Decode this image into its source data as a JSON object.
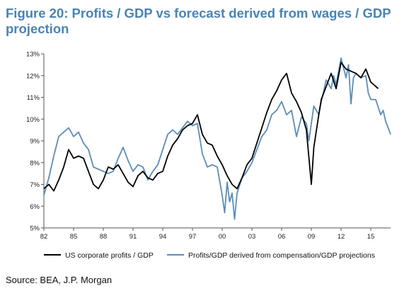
{
  "title": "Figure 20: Profits / GDP vs forecast derived from wages / GDP projection",
  "source": "Source: BEA, J.P. Morgan",
  "chart_data": {
    "type": "line",
    "x_unit": "year",
    "xlim": [
      1982,
      2017
    ],
    "ylim": [
      5,
      13
    ],
    "x_ticks": [
      1982,
      1985,
      1988,
      1991,
      1994,
      1997,
      2000,
      2003,
      2006,
      2009,
      2012,
      2015
    ],
    "x_tick_labels": [
      "82",
      "85",
      "88",
      "91",
      "94",
      "97",
      "00",
      "03",
      "06",
      "09",
      "12",
      "15"
    ],
    "y_ticks": [
      5,
      6,
      7,
      8,
      9,
      10,
      11,
      12,
      13
    ],
    "y_tick_labels": [
      "5%",
      "6%",
      "7%",
      "8%",
      "9%",
      "10%",
      "11%",
      "12%",
      "13%"
    ],
    "legend_position": "bottom",
    "grid": false,
    "series": [
      {
        "name": "US corporate profits / GDP",
        "color": "#000000",
        "points": [
          [
            1982.0,
            6.8
          ],
          [
            1982.5,
            7.0
          ],
          [
            1983.0,
            6.7
          ],
          [
            1983.5,
            7.2
          ],
          [
            1984.0,
            7.8
          ],
          [
            1984.5,
            8.6
          ],
          [
            1985.0,
            8.2
          ],
          [
            1985.5,
            8.3
          ],
          [
            1986.0,
            8.2
          ],
          [
            1986.5,
            7.6
          ],
          [
            1987.0,
            7.0
          ],
          [
            1987.5,
            6.8
          ],
          [
            1988.0,
            7.2
          ],
          [
            1988.5,
            7.8
          ],
          [
            1989.0,
            7.7
          ],
          [
            1989.5,
            7.9
          ],
          [
            1990.0,
            7.5
          ],
          [
            1990.5,
            7.1
          ],
          [
            1991.0,
            6.9
          ],
          [
            1991.5,
            7.4
          ],
          [
            1992.0,
            7.6
          ],
          [
            1992.5,
            7.3
          ],
          [
            1993.0,
            7.2
          ],
          [
            1993.5,
            7.5
          ],
          [
            1994.0,
            7.6
          ],
          [
            1994.5,
            8.3
          ],
          [
            1995.0,
            8.8
          ],
          [
            1995.5,
            9.1
          ],
          [
            1996.0,
            9.5
          ],
          [
            1996.5,
            9.7
          ],
          [
            1997.0,
            9.8
          ],
          [
            1997.5,
            10.2
          ],
          [
            1998.0,
            9.3
          ],
          [
            1998.5,
            8.9
          ],
          [
            1999.0,
            8.8
          ],
          [
            1999.5,
            8.3
          ],
          [
            2000.0,
            7.9
          ],
          [
            2000.5,
            7.4
          ],
          [
            2001.0,
            7.0
          ],
          [
            2001.5,
            6.8
          ],
          [
            2002.0,
            7.3
          ],
          [
            2002.5,
            7.9
          ],
          [
            2003.0,
            8.2
          ],
          [
            2003.5,
            8.9
          ],
          [
            2004.0,
            9.6
          ],
          [
            2004.5,
            10.3
          ],
          [
            2005.0,
            10.9
          ],
          [
            2005.5,
            11.3
          ],
          [
            2006.0,
            11.8
          ],
          [
            2006.5,
            12.1
          ],
          [
            2007.0,
            11.2
          ],
          [
            2007.5,
            10.8
          ],
          [
            2008.0,
            10.3
          ],
          [
            2008.5,
            9.5
          ],
          [
            2009.0,
            7.0
          ],
          [
            2009.25,
            8.7
          ],
          [
            2009.75,
            10.2
          ],
          [
            2010.0,
            10.9
          ],
          [
            2010.5,
            11.5
          ],
          [
            2011.0,
            12.1
          ],
          [
            2011.5,
            11.4
          ],
          [
            2012.0,
            12.6
          ],
          [
            2012.5,
            12.3
          ],
          [
            2013.0,
            12.2
          ],
          [
            2013.5,
            12.1
          ],
          [
            2014.0,
            11.9
          ],
          [
            2014.5,
            12.3
          ],
          [
            2015.0,
            11.7
          ],
          [
            2015.5,
            11.5
          ],
          [
            2015.75,
            11.4
          ]
        ]
      },
      {
        "name": "Profits/GDP derived from compensation/GDP projections",
        "color": "#5b8db8",
        "points": [
          [
            1982.0,
            6.5
          ],
          [
            1982.5,
            7.3
          ],
          [
            1983.0,
            8.3
          ],
          [
            1983.5,
            9.2
          ],
          [
            1984.0,
            9.4
          ],
          [
            1984.5,
            9.6
          ],
          [
            1985.0,
            9.2
          ],
          [
            1985.5,
            9.4
          ],
          [
            1986.0,
            8.9
          ],
          [
            1986.5,
            8.6
          ],
          [
            1987.0,
            7.8
          ],
          [
            1987.5,
            7.7
          ],
          [
            1988.0,
            7.6
          ],
          [
            1988.5,
            7.5
          ],
          [
            1989.0,
            7.6
          ],
          [
            1989.5,
            8.2
          ],
          [
            1990.0,
            8.7
          ],
          [
            1990.5,
            8.1
          ],
          [
            1991.0,
            7.6
          ],
          [
            1991.5,
            7.9
          ],
          [
            1992.0,
            7.8
          ],
          [
            1992.5,
            7.2
          ],
          [
            1993.0,
            7.6
          ],
          [
            1993.5,
            7.9
          ],
          [
            1994.0,
            8.6
          ],
          [
            1994.5,
            9.3
          ],
          [
            1995.0,
            9.5
          ],
          [
            1995.5,
            9.3
          ],
          [
            1996.0,
            9.6
          ],
          [
            1996.5,
            9.9
          ],
          [
            1997.0,
            9.7
          ],
          [
            1997.5,
            9.8
          ],
          [
            1998.0,
            8.4
          ],
          [
            1998.5,
            7.8
          ],
          [
            1999.0,
            7.9
          ],
          [
            1999.5,
            7.8
          ],
          [
            2000.0,
            6.5
          ],
          [
            2000.25,
            5.7
          ],
          [
            2000.5,
            7.1
          ],
          [
            2000.75,
            6.2
          ],
          [
            2001.0,
            6.6
          ],
          [
            2001.25,
            5.4
          ],
          [
            2001.5,
            6.6
          ],
          [
            2002.0,
            7.3
          ],
          [
            2002.5,
            7.6
          ],
          [
            2003.0,
            8.0
          ],
          [
            2003.5,
            8.6
          ],
          [
            2004.0,
            9.2
          ],
          [
            2004.5,
            9.5
          ],
          [
            2005.0,
            10.2
          ],
          [
            2005.5,
            10.4
          ],
          [
            2006.0,
            10.8
          ],
          [
            2006.5,
            10.2
          ],
          [
            2007.0,
            10.4
          ],
          [
            2007.5,
            9.2
          ],
          [
            2008.0,
            10.1
          ],
          [
            2008.5,
            9.8
          ],
          [
            2008.75,
            9.0
          ],
          [
            2009.0,
            9.8
          ],
          [
            2009.25,
            10.6
          ],
          [
            2009.75,
            10.2
          ],
          [
            2010.0,
            10.8
          ],
          [
            2010.5,
            11.8
          ],
          [
            2011.0,
            11.4
          ],
          [
            2011.25,
            12.0
          ],
          [
            2011.5,
            11.6
          ],
          [
            2011.75,
            12.2
          ],
          [
            2012.0,
            12.8
          ],
          [
            2012.5,
            11.9
          ],
          [
            2012.75,
            12.5
          ],
          [
            2013.0,
            10.7
          ],
          [
            2013.25,
            11.9
          ],
          [
            2013.5,
            12.1
          ],
          [
            2014.0,
            11.9
          ],
          [
            2014.5,
            12.0
          ],
          [
            2014.75,
            11.2
          ],
          [
            2015.0,
            10.9
          ],
          [
            2015.5,
            10.9
          ],
          [
            2016.0,
            10.2
          ],
          [
            2016.25,
            10.4
          ],
          [
            2016.5,
            9.9
          ],
          [
            2017.0,
            9.3
          ]
        ]
      }
    ]
  }
}
